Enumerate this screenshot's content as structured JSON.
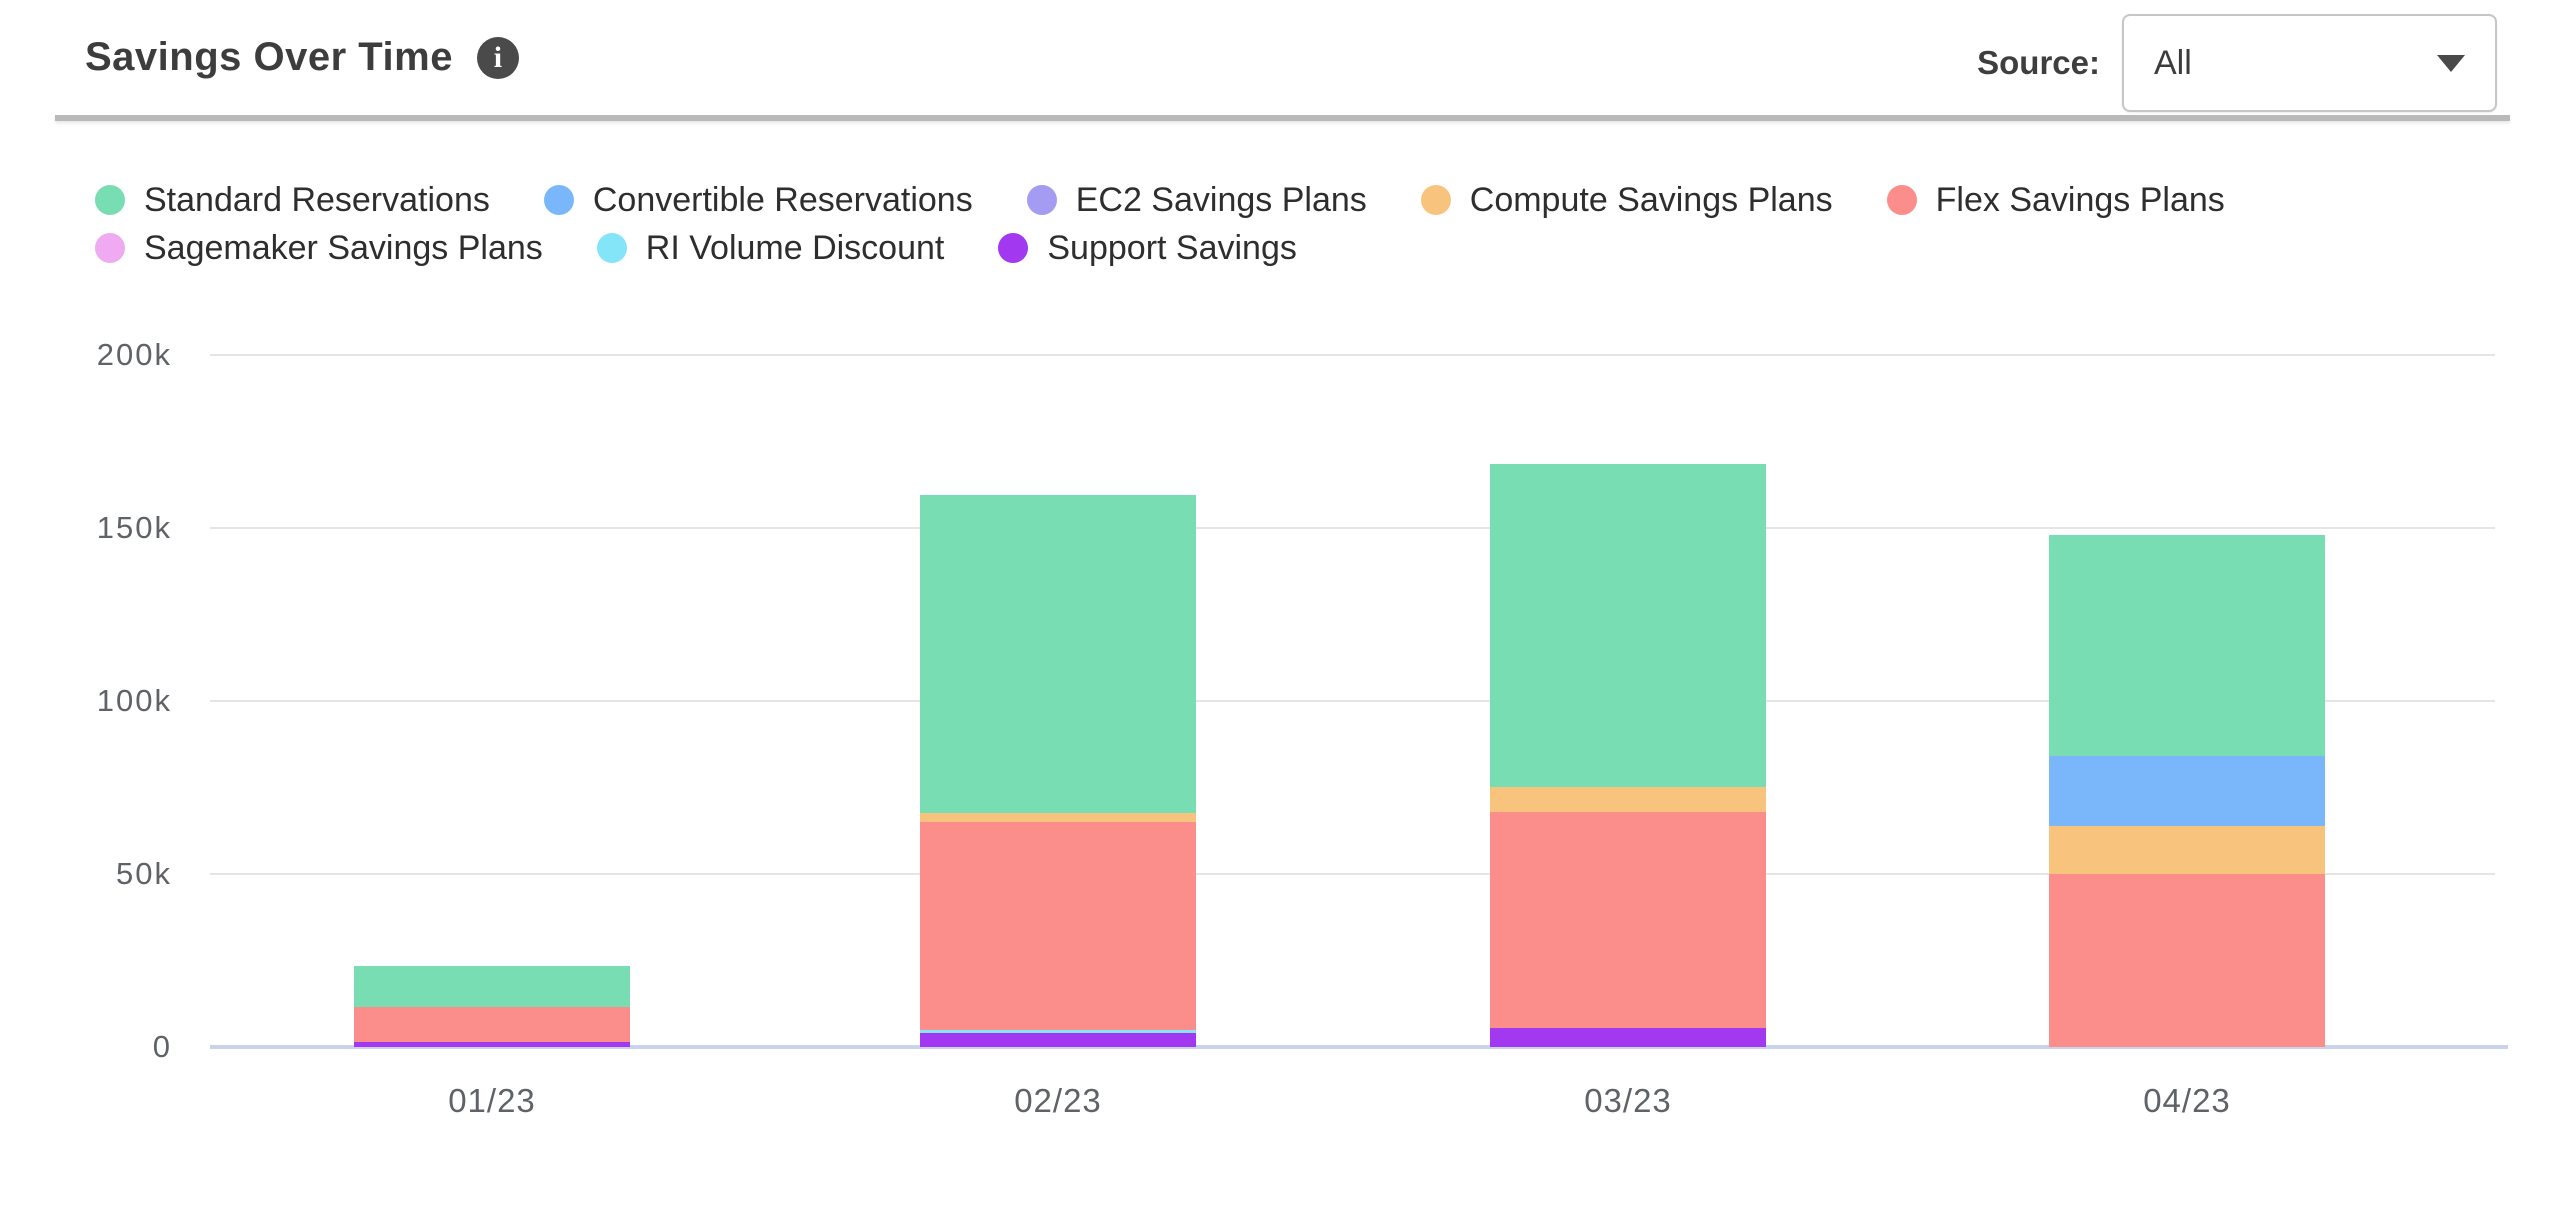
{
  "header": {
    "title": "Savings Over Time",
    "info_icon": "info-circle",
    "source_label": "Source:",
    "source_value": "All"
  },
  "chart_data": {
    "type": "bar",
    "stacked": true,
    "title": "Savings Over Time",
    "xlabel": "",
    "ylabel": "",
    "categories": [
      "01/23",
      "02/23",
      "03/23",
      "04/23"
    ],
    "series": [
      {
        "name": "Standard Reservations",
        "color": "#79ddb3",
        "values": [
          12000,
          92000,
          93500,
          64000
        ]
      },
      {
        "name": "Convertible Reservations",
        "color": "#79b7fa",
        "values": [
          0,
          0,
          0,
          20000
        ]
      },
      {
        "name": "EC2 Savings Plans",
        "color": "#a49bf2",
        "values": [
          0,
          0,
          0,
          0
        ]
      },
      {
        "name": "Compute Savings Plans",
        "color": "#f8c47d",
        "values": [
          0,
          2500,
          7000,
          14000
        ]
      },
      {
        "name": "Flex Savings Plans",
        "color": "#fb8e8b",
        "values": [
          10000,
          60000,
          62500,
          50000
        ]
      },
      {
        "name": "Sagemaker Savings Plans",
        "color": "#efaaf2",
        "values": [
          0,
          0,
          0,
          0
        ]
      },
      {
        "name": "RI Volume Discount",
        "color": "#83e5f7",
        "values": [
          0,
          1000,
          0,
          0
        ]
      },
      {
        "name": "Support Savings",
        "color": "#a238f0",
        "values": [
          1500,
          4000,
          5500,
          0
        ]
      }
    ],
    "stack_order_bottom_to_top": [
      "Support Savings",
      "RI Volume Discount",
      "Sagemaker Savings Plans",
      "Flex Savings Plans",
      "Compute Savings Plans",
      "EC2 Savings Plans",
      "Convertible Reservations",
      "Standard Reservations"
    ],
    "totals": [
      23500,
      159500,
      168500,
      148000
    ],
    "yticks": [
      {
        "label": "0",
        "value": 0
      },
      {
        "label": "50k",
        "value": 50000
      },
      {
        "label": "100k",
        "value": 100000
      },
      {
        "label": "150k",
        "value": 150000
      },
      {
        "label": "200k",
        "value": 200000
      }
    ],
    "ylim": [
      0,
      200000
    ],
    "grid": true,
    "legend_position": "top",
    "colors": {
      "gridline": "#e5e5e5",
      "axis_line": "#c9d3eb",
      "tick_text": "#5f6368",
      "title_text": "#3d3d3d",
      "divider": "#b9b9b9"
    }
  }
}
